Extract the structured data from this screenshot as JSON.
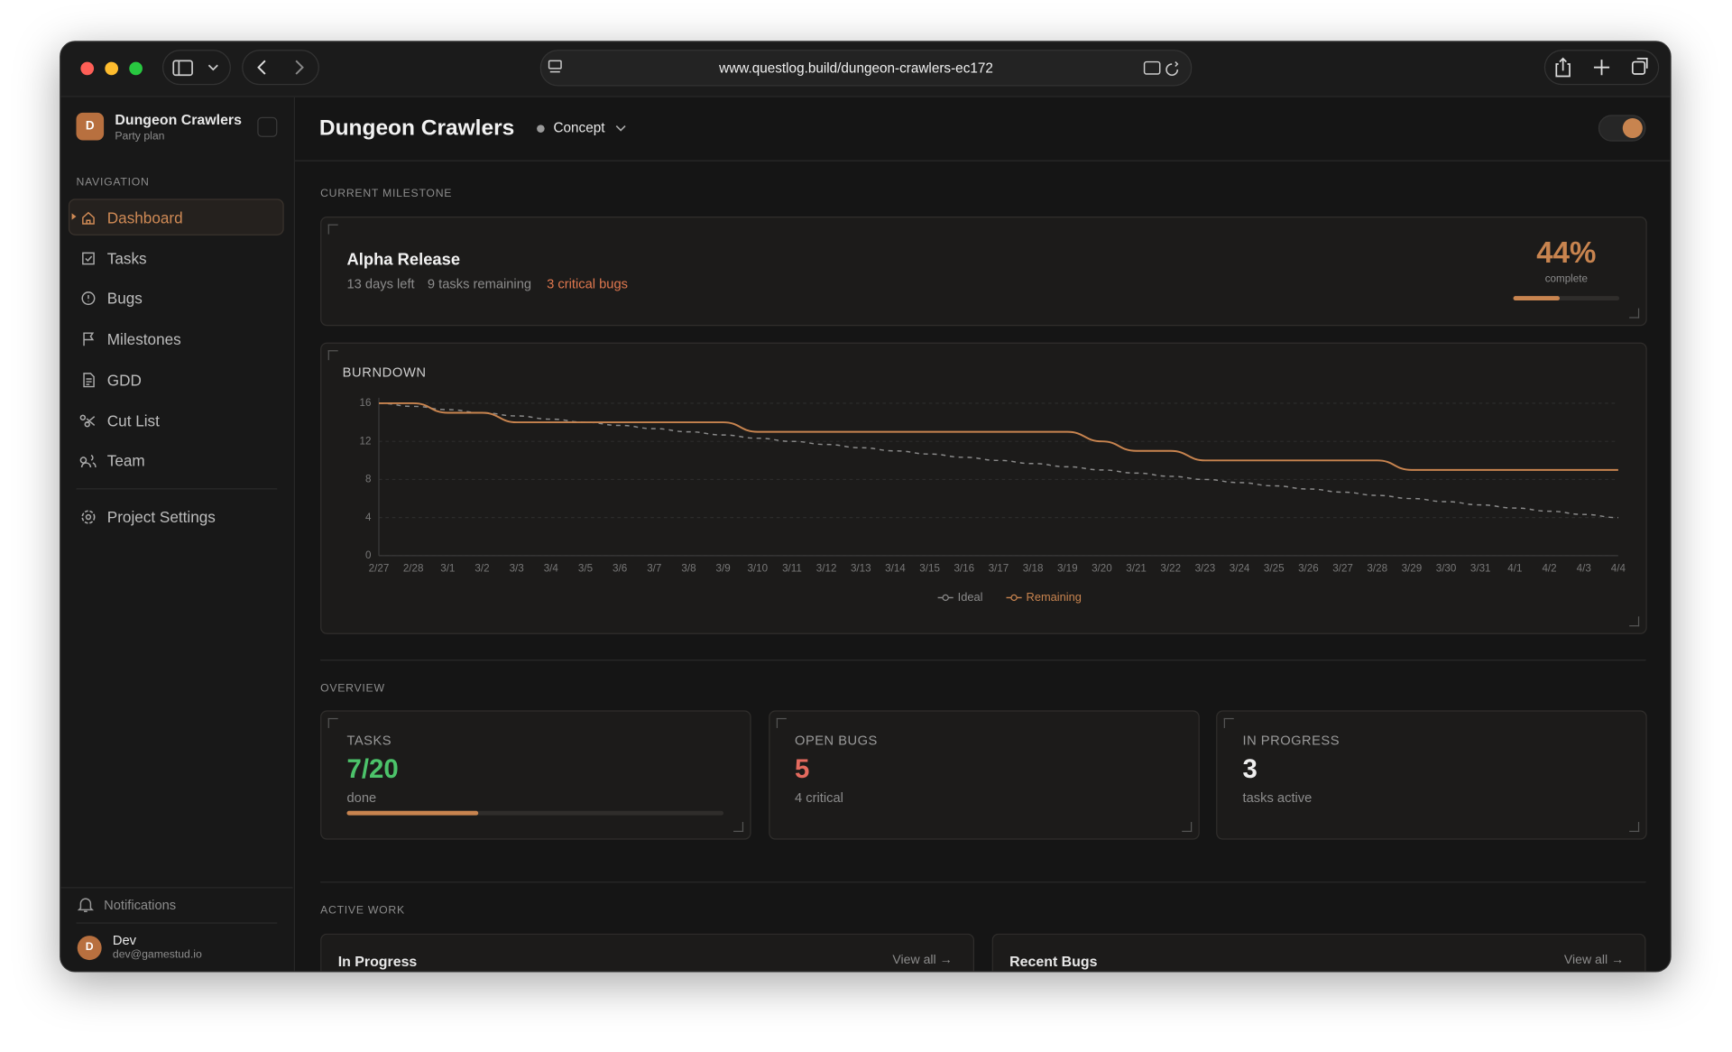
{
  "browser": {
    "url": "www.questlog.build/dungeon-crawlers-ec172"
  },
  "sidebar": {
    "project": {
      "initial": "D",
      "name": "Dungeon Crawlers",
      "plan": "Party plan"
    },
    "nav_heading": "NAVIGATION",
    "nav": [
      "Dashboard",
      "Tasks",
      "Bugs",
      "Milestones",
      "GDD",
      "Cut List",
      "Team"
    ],
    "settings": "Project Settings",
    "notifications": "Notifications",
    "user": {
      "initial": "D",
      "name": "Dev",
      "email": "dev@gamestud.io"
    }
  },
  "header": {
    "title": "Dungeon Crawlers",
    "status": "Concept"
  },
  "milestone": {
    "heading": "CURRENT MILESTONE",
    "name": "Alpha Release",
    "days_left": "13 days left",
    "tasks_remaining": "9 tasks remaining",
    "critical": "3 critical bugs",
    "percent": {
      "value": 44,
      "label": "44%"
    },
    "percent_caption": "complete"
  },
  "chart_data": {
    "type": "line",
    "title": "BURNDOWN",
    "categories": [
      "2/27",
      "2/28",
      "3/1",
      "3/2",
      "3/3",
      "3/4",
      "3/5",
      "3/6",
      "3/7",
      "3/8",
      "3/9",
      "3/10",
      "3/11",
      "3/12",
      "3/13",
      "3/14",
      "3/15",
      "3/16",
      "3/17",
      "3/18",
      "3/19",
      "3/20",
      "3/21",
      "3/22",
      "3/23",
      "3/24",
      "3/25",
      "3/26",
      "3/27",
      "3/28",
      "3/29",
      "3/30",
      "3/31",
      "4/1",
      "4/2",
      "4/3",
      "4/4"
    ],
    "series": [
      {
        "name": "Ideal",
        "color": "#8a8a8a",
        "line_style": "dashed",
        "values": [
          16,
          15.67,
          15.33,
          15,
          14.67,
          14.33,
          14,
          13.67,
          13.33,
          13,
          12.67,
          12.33,
          12,
          11.67,
          11.33,
          11,
          10.67,
          10.33,
          10,
          9.67,
          9.33,
          9,
          8.67,
          8.33,
          8,
          7.67,
          7.33,
          7,
          6.67,
          6.33,
          6,
          5.67,
          5.33,
          5,
          4.67,
          4.33,
          4
        ]
      },
      {
        "name": "Remaining",
        "color": "#c8844f",
        "line_style": "solid",
        "values": [
          16,
          16,
          15,
          15,
          14,
          14,
          14,
          14,
          14,
          14,
          14,
          13,
          13,
          13,
          13,
          13,
          13,
          13,
          13,
          13,
          13,
          12,
          11,
          11,
          10,
          10,
          10,
          10,
          10,
          10,
          9,
          9,
          9,
          9,
          9,
          9,
          9
        ]
      }
    ],
    "ylim": [
      0,
      16
    ],
    "yticks": [
      0,
      4,
      8,
      12,
      16
    ],
    "grid": true,
    "legend": "bottom"
  },
  "overview": {
    "heading": "OVERVIEW",
    "cards": [
      {
        "label": "TASKS",
        "value": "7/20",
        "done": 7,
        "total": 20,
        "caption": "done",
        "color": "#4cc36a"
      },
      {
        "label": "OPEN BUGS",
        "value": "5",
        "caption": "4 critical",
        "color": "#e46a5e"
      },
      {
        "label": "IN PROGRESS",
        "value": "3",
        "caption": "tasks active",
        "color": "#eeeeee"
      }
    ]
  },
  "active_work": {
    "heading": "ACTIVE WORK",
    "panels": [
      {
        "title": "In Progress",
        "link": "View all →"
      },
      {
        "title": "Recent Bugs",
        "link": "View all →"
      }
    ]
  }
}
